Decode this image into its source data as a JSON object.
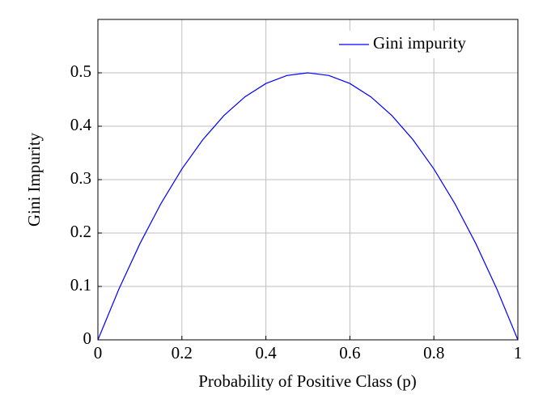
{
  "chart_data": {
    "type": "line",
    "x_label": "Probability of Positive Class (p)",
    "y_label": "Gini Impurity",
    "x": [
      0,
      0.05,
      0.1,
      0.15,
      0.2,
      0.25,
      0.3,
      0.35,
      0.4,
      0.45,
      0.5,
      0.55,
      0.6,
      0.65,
      0.7,
      0.75,
      0.8,
      0.85,
      0.9,
      0.95,
      1
    ],
    "series": [
      {
        "name": "Gini impurity",
        "color": "#0000ff",
        "values": [
          0,
          0.095,
          0.18,
          0.255,
          0.32,
          0.375,
          0.42,
          0.455,
          0.48,
          0.495,
          0.5,
          0.495,
          0.48,
          0.455,
          0.42,
          0.375,
          0.32,
          0.255,
          0.18,
          0.095,
          0
        ]
      }
    ],
    "xlim": [
      0,
      1
    ],
    "xticks": [
      0,
      0.2,
      0.4,
      0.6,
      0.8,
      1
    ],
    "ylim": [
      0,
      0.6
    ],
    "yticks": [
      0,
      0.1,
      0.2,
      0.3,
      0.4,
      0.5
    ],
    "grid": true,
    "legend": "upper-right"
  }
}
